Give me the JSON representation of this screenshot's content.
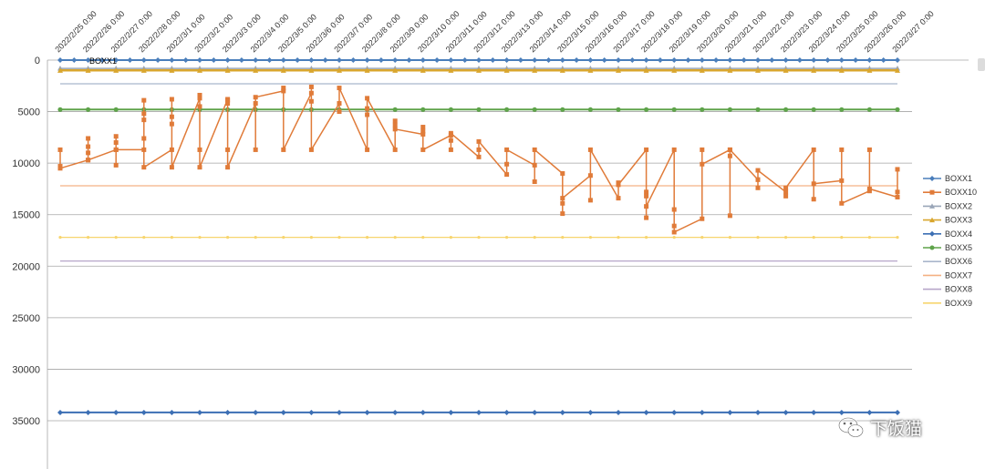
{
  "chart_data": {
    "type": "line",
    "title": "",
    "xlabel": "",
    "ylabel": "",
    "y_reversed": true,
    "ylim": [
      0,
      40000
    ],
    "y_ticks": [
      0,
      5000,
      10000,
      15000,
      20000,
      25000,
      30000,
      35000
    ],
    "y_tick_labels": [
      "0",
      "5000",
      "10000",
      "15000",
      "20000",
      "25000",
      "30000",
      "35000"
    ],
    "x_tick_labels": [
      "2022/2/25 0:00",
      "2022/2/26 0:00",
      "2022/2/27 0:00",
      "2022/2/28 0:00",
      "2022/3/1 0:00",
      "2022/3/2 0:00",
      "2022/3/3 0:00",
      "2022/3/4 0:00",
      "2022/3/5 0:00",
      "2022/3/6 0:00",
      "2022/3/7 0:00",
      "2022/3/8 0:00",
      "2022/3/9 0:00",
      "2022/3/10 0:00",
      "2022/3/11 0:00",
      "2022/3/12 0:00",
      "2022/3/13 0:00",
      "2022/3/14 0:00",
      "2022/3/15 0:00",
      "2022/3/16 0:00",
      "2022/3/17 0:00",
      "2022/3/18 0:00",
      "2022/3/19 0:00",
      "2022/3/20 0:00",
      "2022/3/21 0:00",
      "2022/3/22 0:00",
      "2022/3/23 0:00",
      "2022/3/24 0:00",
      "2022/3/25 0:00",
      "2022/3/26 0:00",
      "2022/3/27 0:00"
    ],
    "grid": "horizontal",
    "legend_position": "right",
    "inline_label": "BOXX1",
    "series": [
      {
        "name": "BOXX1",
        "color": "#4a7ebb",
        "marker": "diamond",
        "line_width": 2,
        "x": [
          0,
          0.5,
          1,
          1.5,
          2,
          2.5,
          3,
          3.5,
          4,
          4.5,
          5,
          5.5,
          6,
          6.5,
          7,
          7.5,
          8,
          8.5,
          9,
          9.5,
          10,
          10.5,
          11,
          11.5,
          12,
          12.5,
          13,
          13.5,
          14,
          14.5,
          15,
          15.5,
          16,
          16.5,
          17,
          17.5,
          18,
          18.5,
          19,
          19.5,
          20,
          20.5,
          21,
          21.5,
          22,
          22.5,
          23,
          23.5,
          24,
          24.5,
          25,
          25.5,
          26,
          26.5,
          27,
          27.5,
          28,
          28.5,
          29,
          29.5,
          30
        ],
        "values": [
          0,
          0,
          0,
          0,
          0,
          0,
          0,
          0,
          0,
          0,
          0,
          0,
          0,
          0,
          0,
          0,
          0,
          0,
          0,
          0,
          0,
          0,
          0,
          0,
          0,
          0,
          0,
          0,
          0,
          0,
          0,
          0,
          0,
          0,
          0,
          0,
          0,
          0,
          0,
          0,
          0,
          0,
          0,
          0,
          0,
          0,
          0,
          0,
          0,
          0,
          0,
          0,
          0,
          0,
          0,
          0,
          0,
          0,
          0,
          0,
          0
        ]
      },
      {
        "name": "BOXX10",
        "color": "#e07b39",
        "marker": "square",
        "line_width": 1.5,
        "x": [
          0,
          0,
          0,
          1,
          1,
          1,
          1,
          1,
          2,
          2,
          2,
          2,
          2,
          3,
          3,
          3,
          3,
          3,
          3,
          4,
          4,
          4,
          4,
          4,
          5,
          5,
          5,
          5,
          5,
          6,
          6,
          6,
          6,
          6,
          7,
          7,
          7,
          8,
          8,
          8,
          9,
          9,
          9,
          9,
          10,
          10,
          10,
          11,
          11,
          11,
          11,
          12,
          12,
          12,
          12,
          13,
          13,
          13,
          13,
          14,
          14,
          14,
          14,
          15,
          15,
          15,
          16,
          16,
          16,
          17,
          17,
          17,
          18,
          18,
          18,
          18,
          19,
          19,
          19,
          20,
          20,
          20,
          21,
          21,
          21,
          21,
          21,
          22,
          22,
          22,
          22,
          23,
          23,
          23,
          24,
          24,
          24,
          24,
          25,
          25,
          25,
          25,
          26,
          26,
          26,
          27,
          27,
          27,
          28,
          28,
          28,
          29,
          29,
          29,
          30,
          30,
          30
        ],
        "values": [
          8700,
          10300,
          10500,
          9700,
          9000,
          8400,
          7600,
          9700,
          8700,
          8000,
          7400,
          10200,
          8700,
          8700,
          7600,
          5800,
          5200,
          3900,
          10400,
          8700,
          6200,
          5500,
          3800,
          10400,
          3700,
          4500,
          3400,
          8700,
          10400,
          3800,
          4200,
          3900,
          8700,
          10400,
          4200,
          8700,
          3600,
          3000,
          2700,
          8700,
          3200,
          4000,
          2600,
          8700,
          4200,
          5000,
          2700,
          8700,
          5300,
          4700,
          3700,
          8700,
          5900,
          6300,
          6700,
          7200,
          6500,
          6900,
          8700,
          7300,
          7800,
          8700,
          7100,
          9400,
          8700,
          7900,
          11100,
          10100,
          8700,
          10200,
          11800,
          8700,
          11000,
          14900,
          13900,
          13400,
          11200,
          13600,
          8700,
          13400,
          11900,
          12100,
          8700,
          12800,
          13200,
          15300,
          14200,
          8700,
          14500,
          16100,
          16700,
          15400,
          8700,
          10100,
          8700,
          9300,
          15100,
          8700,
          11600,
          12400,
          11600,
          10700,
          12800,
          13200,
          12400,
          8700,
          13500,
          12000,
          11700,
          8700,
          13900,
          12700,
          8700,
          12500,
          13300,
          12800,
          10600
        ]
      },
      {
        "name": "BOXX2",
        "color": "#9aa6b8",
        "marker": "triangle",
        "line_width": 1.5,
        "x": [
          0,
          1,
          2,
          3,
          4,
          5,
          6,
          7,
          8,
          9,
          10,
          11,
          12,
          13,
          14,
          15,
          16,
          17,
          18,
          19,
          20,
          21,
          22,
          23,
          24,
          25,
          26,
          27,
          28,
          29,
          30
        ],
        "values": [
          800,
          800,
          800,
          800,
          800,
          800,
          800,
          800,
          800,
          800,
          800,
          800,
          800,
          800,
          800,
          800,
          800,
          800,
          800,
          800,
          800,
          800,
          800,
          800,
          800,
          800,
          800,
          800,
          800,
          800,
          800
        ]
      },
      {
        "name": "BOXX3",
        "color": "#d9a62e",
        "marker": "triangle",
        "line_width": 2.5,
        "x": [
          0,
          1,
          2,
          3,
          4,
          5,
          6,
          7,
          8,
          9,
          10,
          11,
          12,
          13,
          14,
          15,
          16,
          17,
          18,
          19,
          20,
          21,
          22,
          23,
          24,
          25,
          26,
          27,
          28,
          29,
          30
        ],
        "values": [
          1000,
          1000,
          1000,
          1000,
          1000,
          1000,
          1000,
          1000,
          1000,
          1000,
          1000,
          1000,
          1000,
          1000,
          1000,
          1000,
          1000,
          1000,
          1000,
          1000,
          1000,
          1000,
          1000,
          1000,
          1000,
          1000,
          1000,
          1000,
          1000,
          1000,
          1000
        ]
      },
      {
        "name": "BOXX4",
        "color": "#3c6fb4",
        "marker": "diamond",
        "line_width": 2,
        "x": [
          0,
          1,
          2,
          3,
          4,
          5,
          6,
          7,
          8,
          9,
          10,
          11,
          12,
          13,
          14,
          15,
          16,
          17,
          18,
          19,
          20,
          21,
          22,
          23,
          24,
          25,
          26,
          27,
          28,
          29,
          30
        ],
        "values": [
          34200,
          34200,
          34200,
          34200,
          34200,
          34200,
          34200,
          34200,
          34200,
          34200,
          34200,
          34200,
          34200,
          34200,
          34200,
          34200,
          34200,
          34200,
          34200,
          34200,
          34200,
          34200,
          34200,
          34200,
          34200,
          34200,
          34200,
          34200,
          34200,
          34200,
          34200
        ]
      },
      {
        "name": "BOXX5",
        "color": "#5ea34a",
        "marker": "circle",
        "line_width": 2,
        "x": [
          0,
          1,
          2,
          3,
          4,
          5,
          6,
          7,
          8,
          9,
          10,
          11,
          12,
          13,
          14,
          15,
          16,
          17,
          18,
          19,
          20,
          21,
          22,
          23,
          24,
          25,
          26,
          27,
          28,
          29,
          30
        ],
        "values": [
          4800,
          4800,
          4800,
          4800,
          4800,
          4800,
          4800,
          4800,
          4800,
          4800,
          4800,
          4800,
          4800,
          4800,
          4800,
          4800,
          4800,
          4800,
          4800,
          4800,
          4800,
          4800,
          4800,
          4800,
          4800,
          4800,
          4800,
          4800,
          4800,
          4800,
          4800
        ]
      },
      {
        "name": "BOXX6",
        "color": "#a9b6cc",
        "marker": "none",
        "line_width": 1.2,
        "x": [
          0,
          30
        ],
        "values": [
          2300,
          2300
        ]
      },
      {
        "name": "BOXX7",
        "color": "#f4b183",
        "marker": "none",
        "line_width": 1.2,
        "x": [
          0,
          30
        ],
        "values": [
          12200,
          12200
        ]
      },
      {
        "name": "BOXX8",
        "color": "#b7a6c9",
        "marker": "none",
        "line_width": 1.2,
        "x": [
          0,
          30
        ],
        "values": [
          19500,
          19500
        ]
      },
      {
        "name": "BOXX9",
        "color": "#f7d56e",
        "marker": "small",
        "line_width": 1.2,
        "x": [
          0,
          1,
          2,
          3,
          4,
          5,
          6,
          7,
          8,
          9,
          10,
          11,
          12,
          13,
          14,
          15,
          16,
          17,
          18,
          19,
          20,
          21,
          22,
          23,
          24,
          25,
          26,
          27,
          28,
          29,
          30
        ],
        "values": [
          17200,
          17200,
          17200,
          17200,
          17200,
          17200,
          17200,
          17200,
          17200,
          17200,
          17200,
          17200,
          17200,
          17200,
          17200,
          17200,
          17200,
          17200,
          17200,
          17200,
          17200,
          17200,
          17200,
          17200,
          17200,
          17200,
          17200,
          17200,
          17200,
          17200,
          17200
        ]
      }
    ]
  },
  "watermark": {
    "icon": "wechat-icon",
    "text": "下饭猫"
  }
}
